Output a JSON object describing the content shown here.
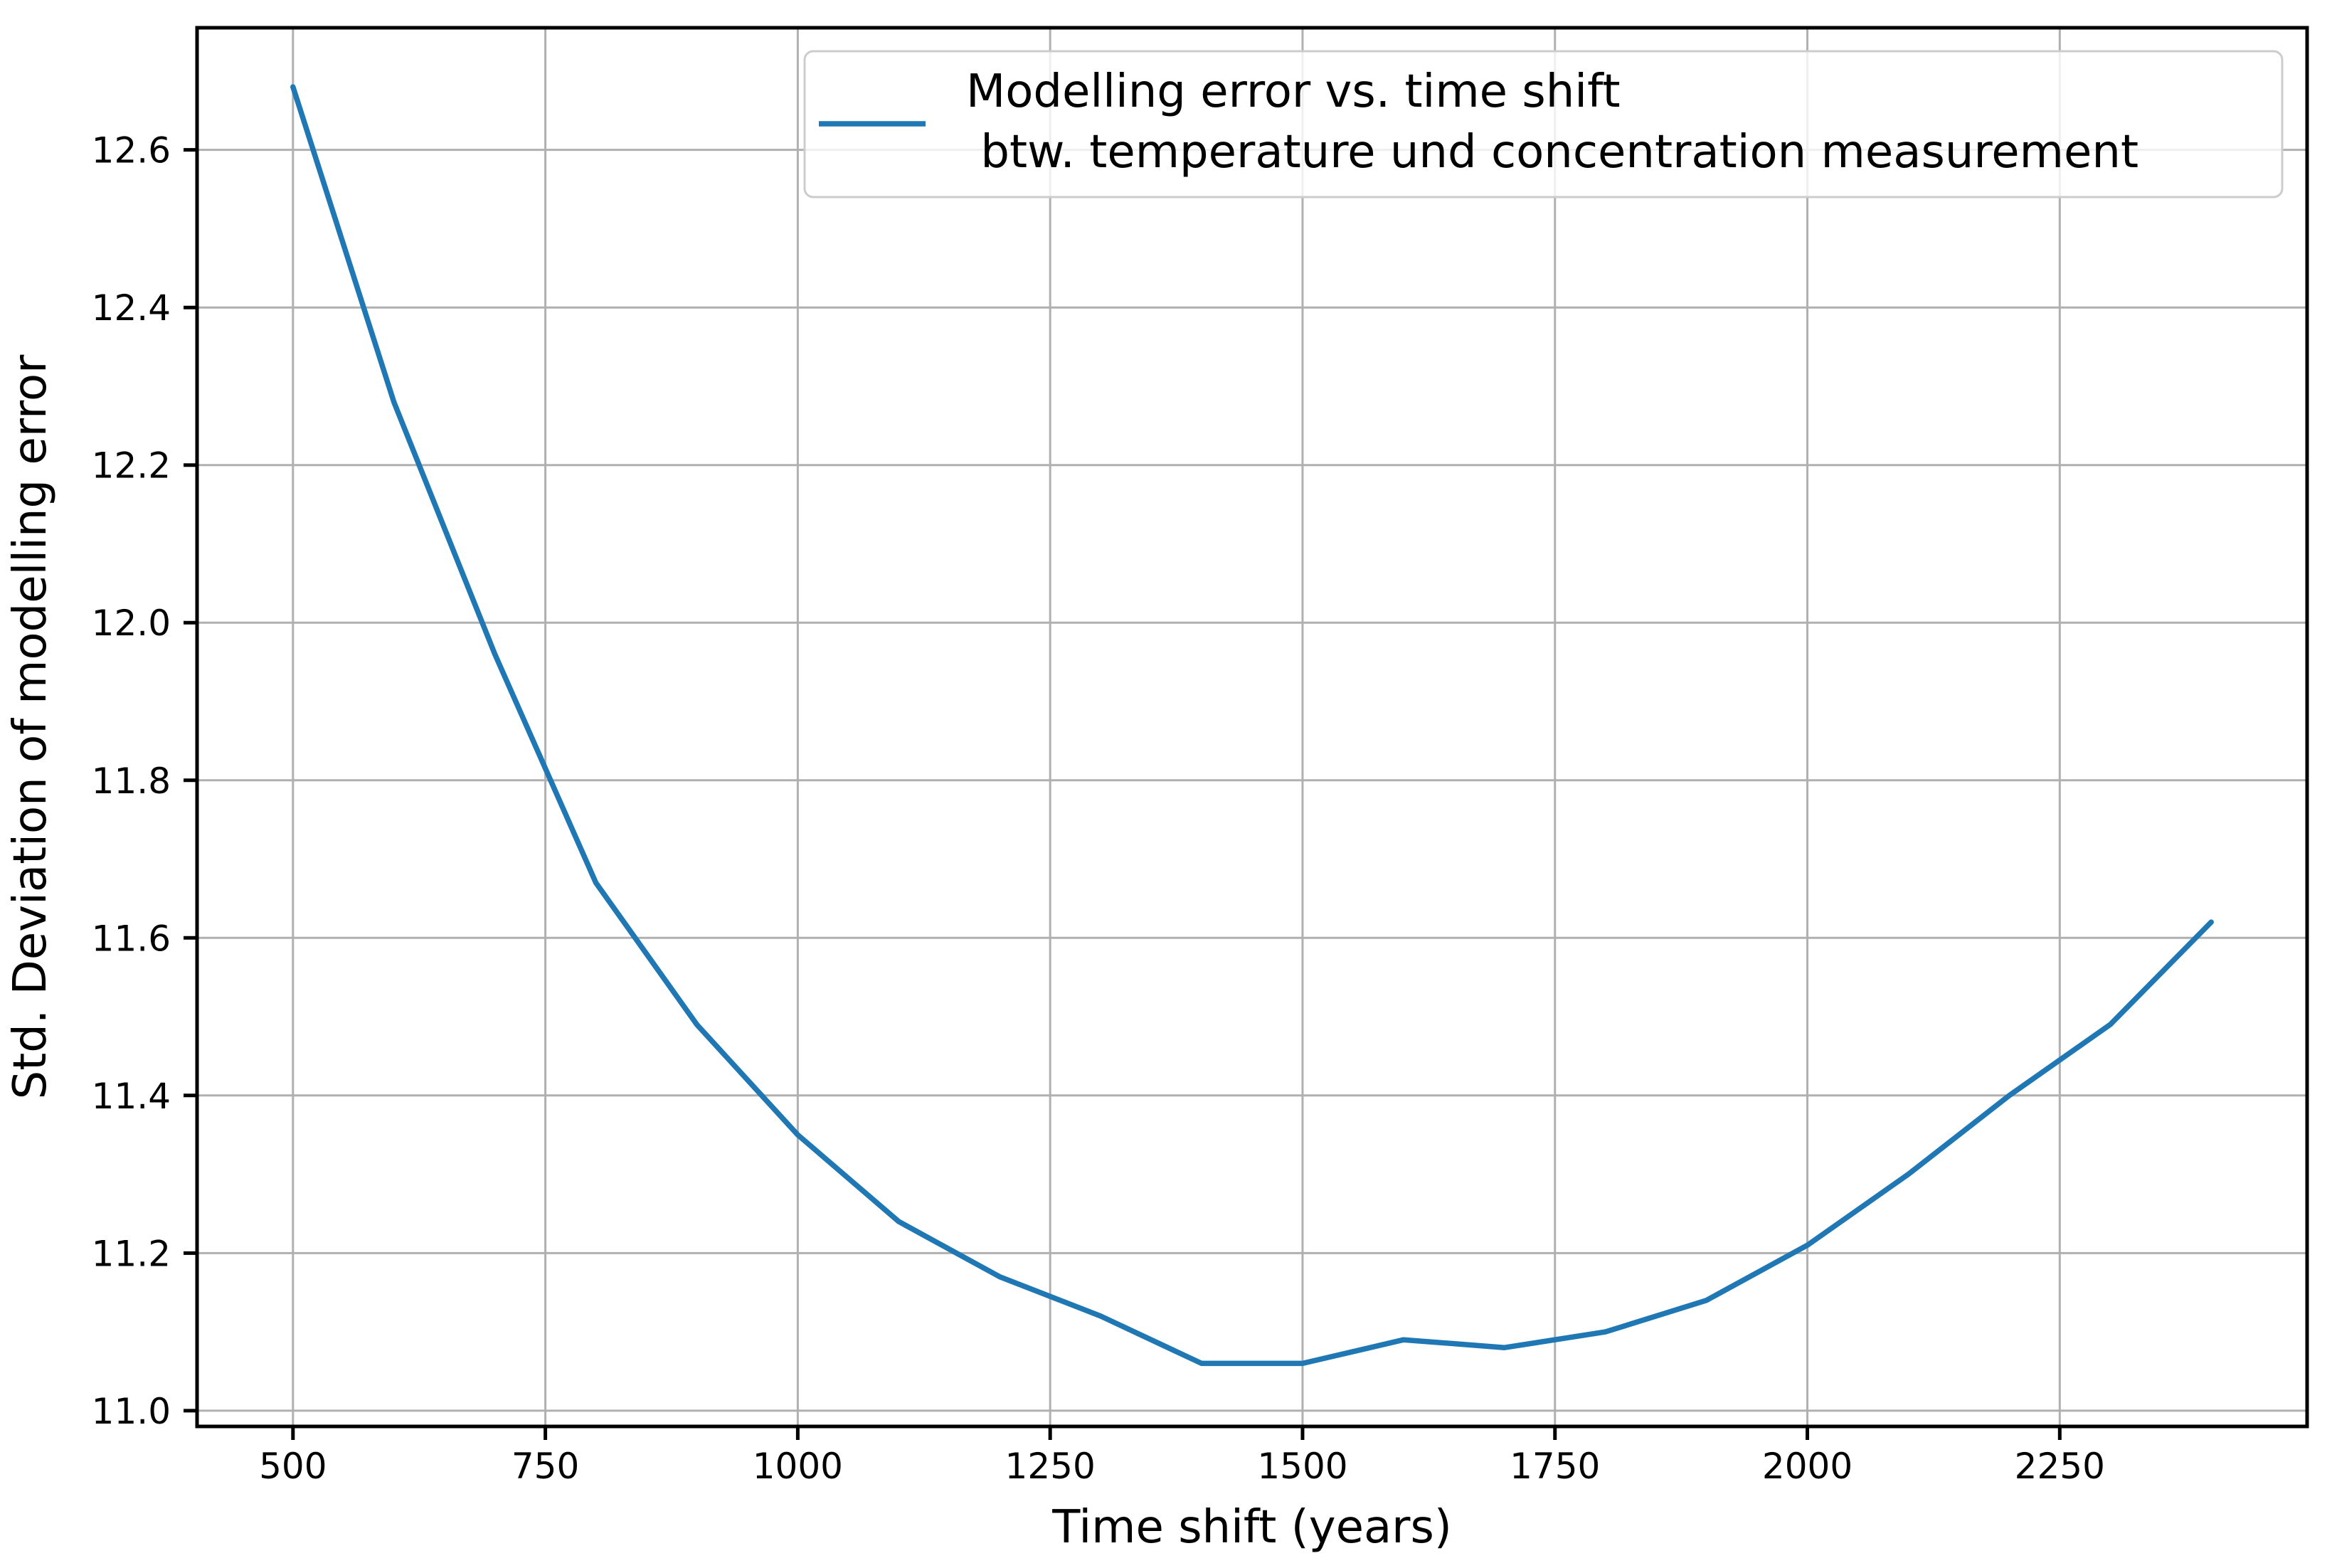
{
  "chart_data": {
    "type": "line",
    "title": "",
    "xlabel": "Time shift (years)",
    "ylabel": "Std. Deviation of modelling error",
    "x": [
      500,
      600,
      700,
      800,
      900,
      1000,
      1100,
      1200,
      1300,
      1400,
      1500,
      1600,
      1700,
      1800,
      1900,
      2000,
      2100,
      2200,
      2300,
      2400
    ],
    "series": [
      {
        "name": "Modelling error vs. time shift btw. temperature und concentration measurement",
        "color": "#1f77b4",
        "values": [
          12.68,
          12.28,
          11.96,
          11.67,
          11.49,
          11.35,
          11.24,
          11.17,
          11.12,
          11.06,
          11.06,
          11.09,
          11.08,
          11.1,
          11.14,
          11.21,
          11.3,
          11.4,
          11.49,
          11.62
        ]
      }
    ],
    "legend": {
      "position": "upper right",
      "lines": [
        "Modelling error vs. time shift",
        " btw. temperature und concentration measurement"
      ],
      "swatch_color": "#1f77b4"
    },
    "xlim": [
      405,
      2495
    ],
    "ylim": [
      10.98,
      12.755
    ],
    "xticks": [
      500,
      750,
      1000,
      1250,
      1500,
      1750,
      2000,
      2250
    ],
    "yticks": [
      11.0,
      11.2,
      11.4,
      11.6,
      11.8,
      12.0,
      12.2,
      12.4,
      12.6
    ],
    "grid": true,
    "grid_color": "#b0b0b0",
    "axis_color": "#000000",
    "background_color": "#ffffff",
    "line_width": 7.5
  }
}
